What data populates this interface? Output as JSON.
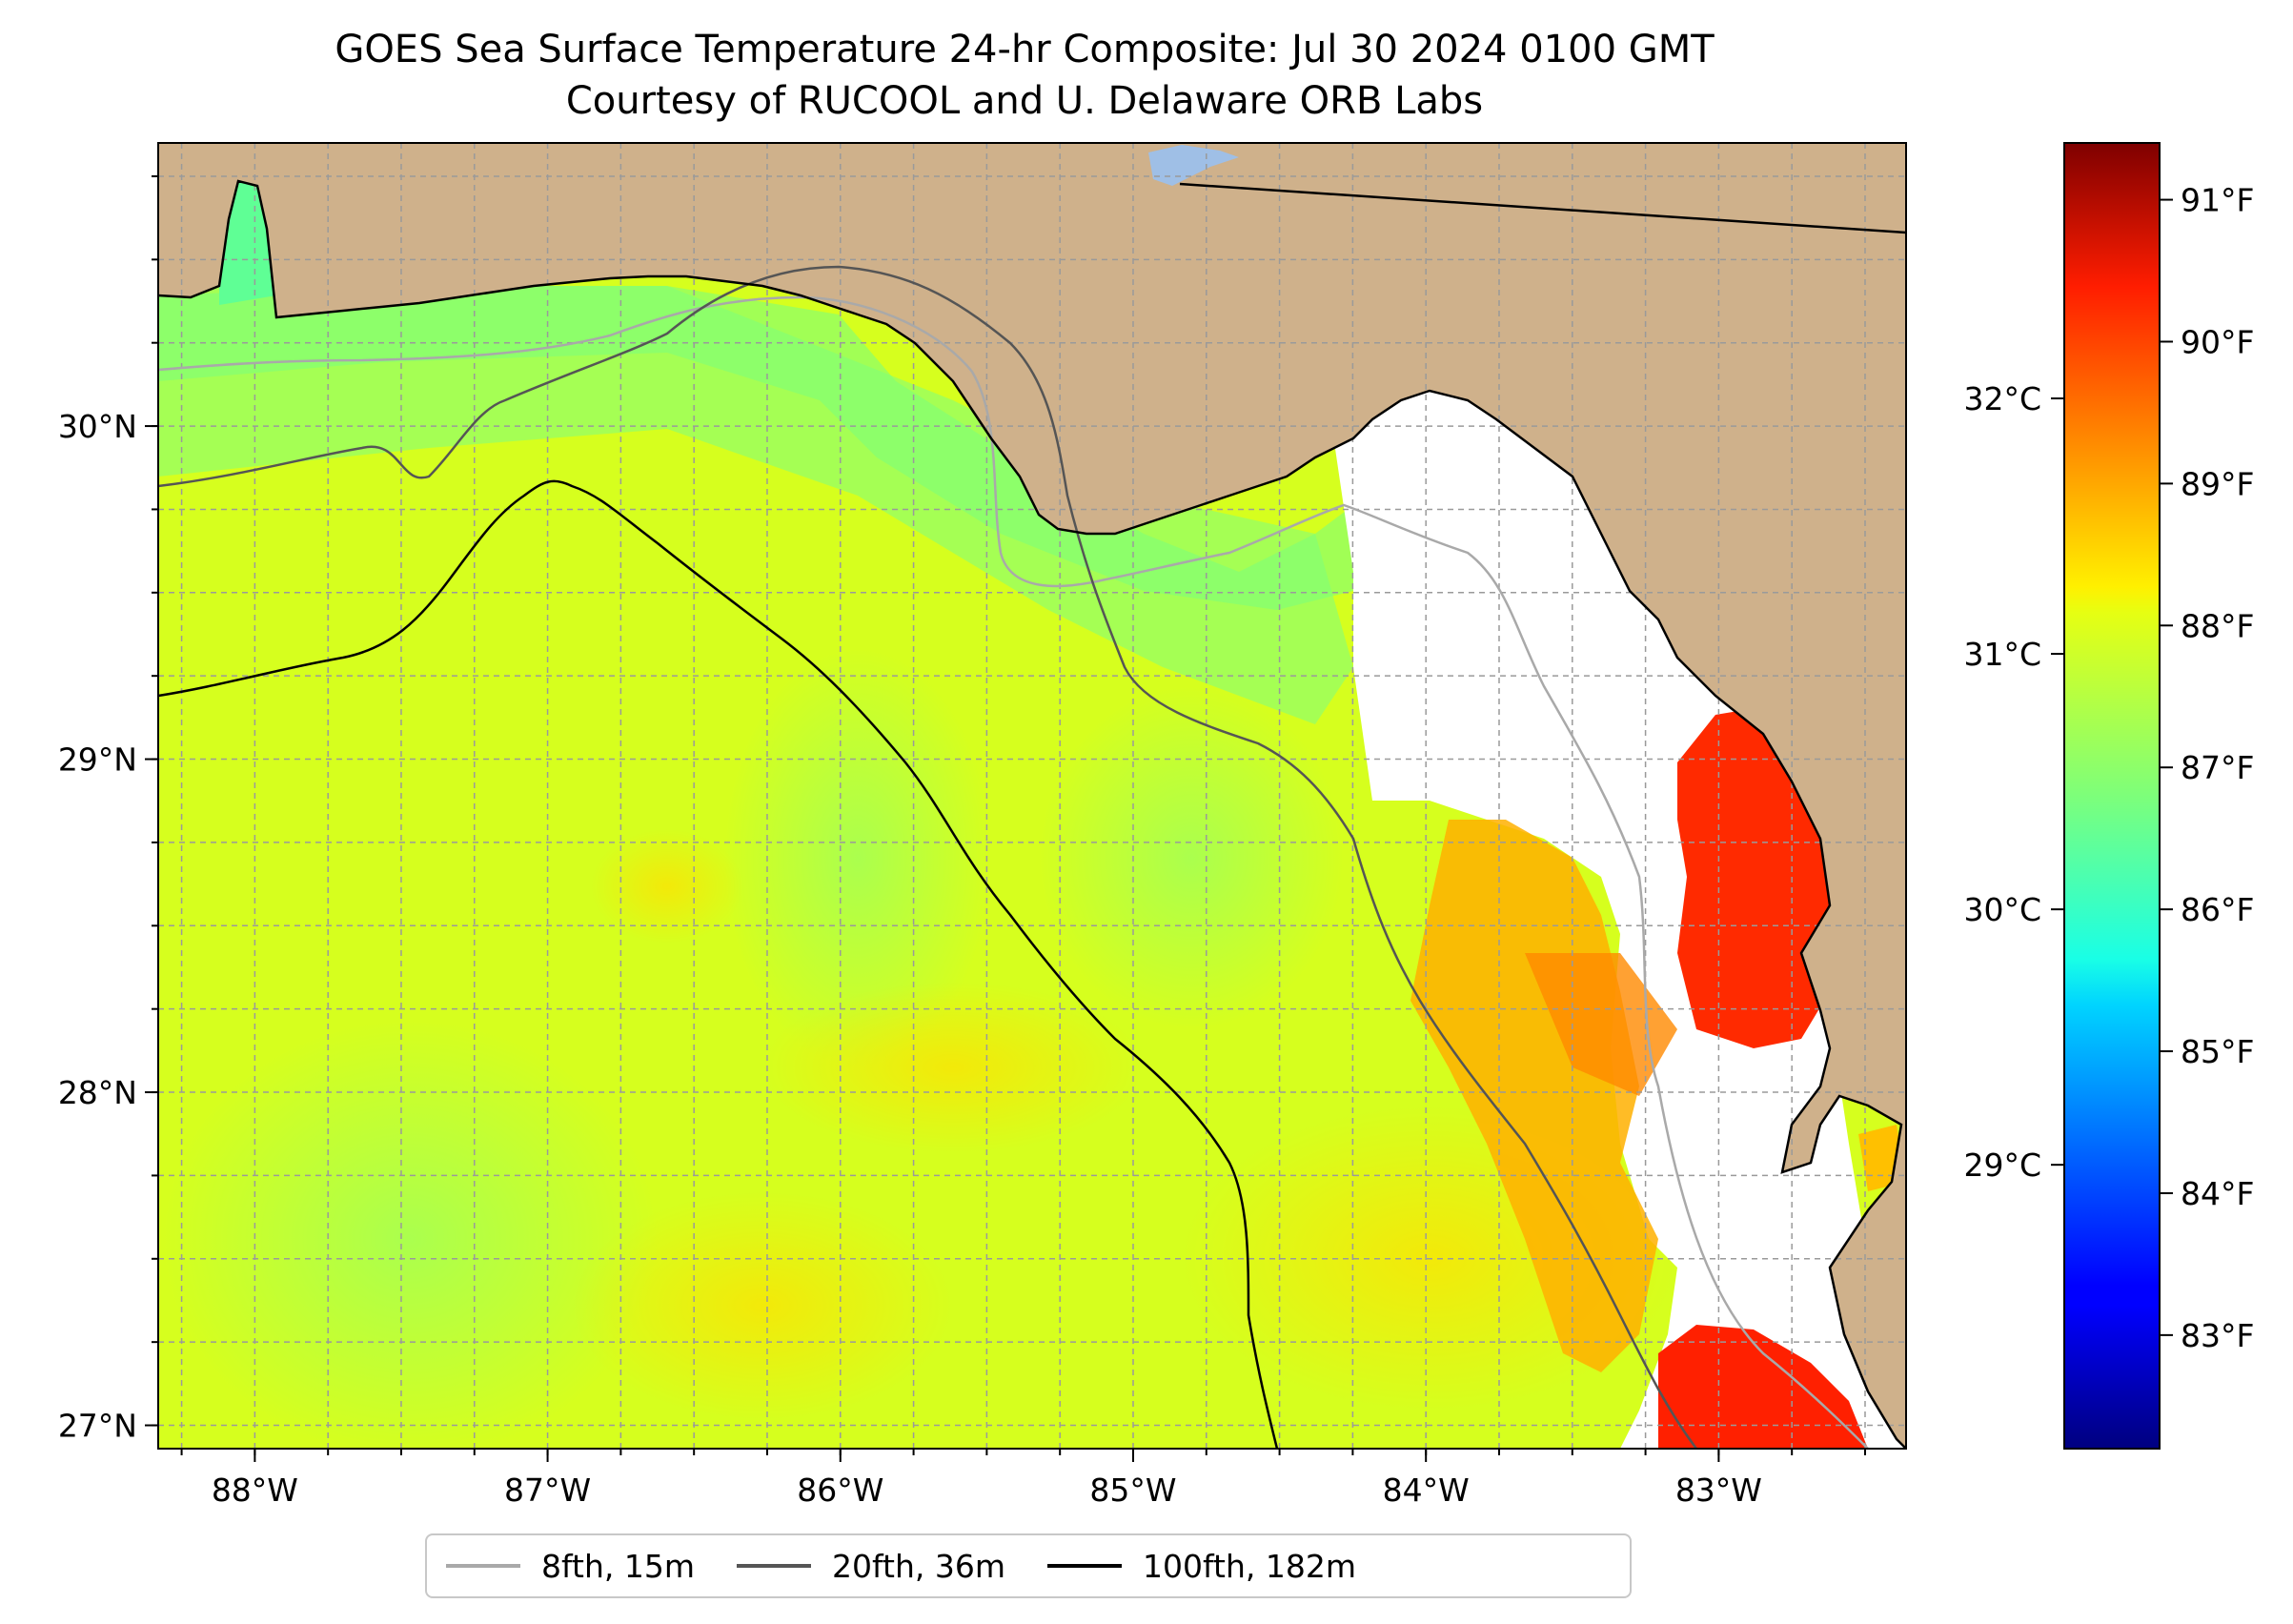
{
  "title": "GOES Sea Surface Temperature 24-hr Composite: Jul 30 2024 0100 GMT",
  "subtitle": "Courtesy of RUCOOL and U. Delaware ORB Labs",
  "map": {
    "land_color": "#cfb18b",
    "lon_range": [
      -88.33,
      -82.36
    ],
    "lat_range": [
      26.93,
      30.85
    ],
    "lon_ticks": [
      {
        "value": -88,
        "label": "88°W"
      },
      {
        "value": -87,
        "label": "87°W"
      },
      {
        "value": -86,
        "label": "86°W"
      },
      {
        "value": -85,
        "label": "85°W"
      },
      {
        "value": -84,
        "label": "84°W"
      },
      {
        "value": -83,
        "label": "83°W"
      }
    ],
    "lat_ticks": [
      {
        "value": 27,
        "label": "27°N"
      },
      {
        "value": 28,
        "label": "28°N"
      },
      {
        "value": 29,
        "label": "29°N"
      },
      {
        "value": 30,
        "label": "30°N"
      }
    ],
    "gridlines": true
  },
  "colorbar": {
    "colormap": "jet",
    "f_ticks": [
      {
        "value": 83,
        "label": "83°F"
      },
      {
        "value": 84,
        "label": "84°F"
      },
      {
        "value": 85,
        "label": "85°F"
      },
      {
        "value": 86,
        "label": "86°F"
      },
      {
        "value": 87,
        "label": "87°F"
      },
      {
        "value": 88,
        "label": "88°F"
      },
      {
        "value": 89,
        "label": "89°F"
      },
      {
        "value": 90,
        "label": "90°F"
      },
      {
        "value": 91,
        "label": "91°F"
      }
    ],
    "c_ticks": [
      {
        "value": 29,
        "label": "29°C"
      },
      {
        "value": 30,
        "label": "30°C"
      },
      {
        "value": 31,
        "label": "31°C"
      },
      {
        "value": 32,
        "label": "32°C"
      }
    ],
    "f_range": [
      82.2,
      91.4
    ]
  },
  "legend": [
    {
      "label": "8fth, 15m",
      "color": "#a9a9a9"
    },
    {
      "label": "20fth, 36m",
      "color": "#555555"
    },
    {
      "label": "100fth, 182m",
      "color": "#000000"
    }
  ]
}
